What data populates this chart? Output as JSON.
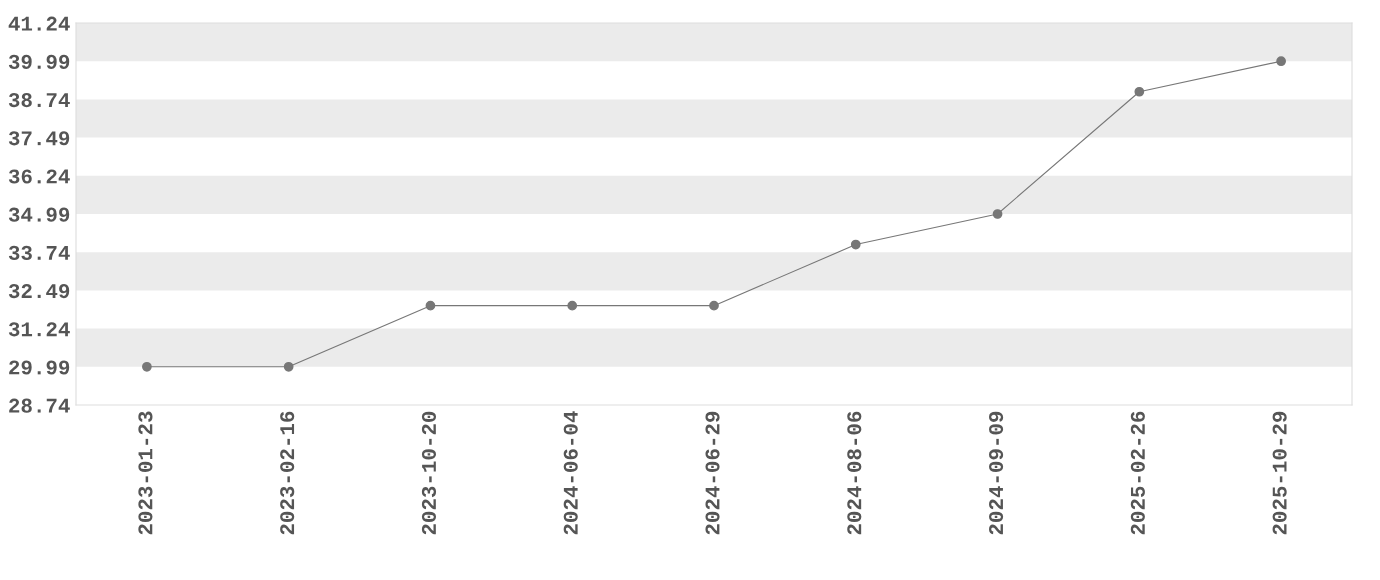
{
  "chart_data": {
    "type": "line",
    "categories": [
      "2023-01-23",
      "2023-02-16",
      "2023-10-20",
      "2024-06-04",
      "2024-06-29",
      "2024-08-06",
      "2024-09-09",
      "2025-02-26",
      "2025-10-29"
    ],
    "series": [
      {
        "color": "#777777",
        "values": [
          29.99,
          29.99,
          31.99,
          31.99,
          31.99,
          33.99,
          34.99,
          38.99,
          39.99
        ]
      }
    ],
    "ylim": [
      28.74,
      41.24
    ],
    "yticks": [
      28.74,
      29.99,
      31.24,
      32.49,
      33.74,
      34.99,
      36.24,
      37.49,
      38.74,
      39.99,
      41.24
    ],
    "bands": [
      {
        "axis": "y",
        "from": 29.99,
        "to": 31.24,
        "color": "#ebebeb"
      },
      {
        "axis": "y",
        "from": 32.49,
        "to": 33.74,
        "color": "#ebebeb"
      },
      {
        "axis": "y",
        "from": 34.99,
        "to": 36.24,
        "color": "#ebebeb"
      },
      {
        "axis": "y",
        "from": 37.49,
        "to": 38.74,
        "color": "#ebebeb"
      },
      {
        "axis": "y",
        "from": 39.99,
        "to": 41.24,
        "color": "#ebebeb"
      }
    ],
    "marker": "circle",
    "line_style": "solid"
  }
}
